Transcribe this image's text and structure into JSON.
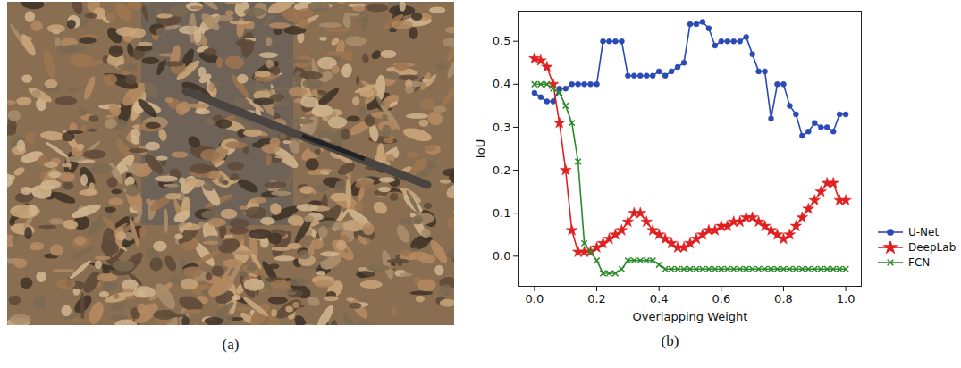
{
  "panel_labels": [
    "(a)",
    "(b)"
  ],
  "chart_data": {
    "type": "line",
    "x_label": "Overlapping Weight",
    "y_label": "IoU",
    "x": [
      0.0,
      0.02,
      0.04,
      0.06,
      0.08,
      0.1,
      0.12,
      0.14,
      0.16,
      0.18,
      0.2,
      0.22,
      0.24,
      0.26,
      0.28,
      0.3,
      0.32,
      0.34,
      0.36,
      0.38,
      0.4,
      0.42,
      0.44,
      0.46,
      0.48,
      0.5,
      0.52,
      0.54,
      0.56,
      0.58,
      0.6,
      0.62,
      0.64,
      0.66,
      0.68,
      0.7,
      0.72,
      0.74,
      0.76,
      0.78,
      0.8,
      0.82,
      0.84,
      0.86,
      0.88,
      0.9,
      0.92,
      0.94,
      0.96,
      0.98,
      1.0
    ],
    "series": [
      {
        "name": "U-Net",
        "color": "#2a4bb5",
        "marker": "circle",
        "values": [
          0.38,
          0.37,
          0.36,
          0.36,
          0.39,
          0.39,
          0.4,
          0.4,
          0.4,
          0.4,
          0.4,
          0.5,
          0.5,
          0.5,
          0.5,
          0.42,
          0.42,
          0.42,
          0.42,
          0.42,
          0.43,
          0.42,
          0.43,
          0.44,
          0.45,
          0.54,
          0.54,
          0.545,
          0.53,
          0.49,
          0.5,
          0.5,
          0.5,
          0.5,
          0.51,
          0.47,
          0.43,
          0.43,
          0.32,
          0.4,
          0.4,
          0.35,
          0.33,
          0.28,
          0.29,
          0.31,
          0.3,
          0.3,
          0.29,
          0.33,
          0.33
        ]
      },
      {
        "name": "DeepLab",
        "color": "#e02020",
        "marker": "star",
        "values": [
          0.46,
          0.455,
          0.44,
          0.4,
          0.31,
          0.2,
          0.06,
          0.01,
          0.01,
          0.01,
          0.02,
          0.03,
          0.04,
          0.05,
          0.06,
          0.08,
          0.1,
          0.1,
          0.08,
          0.06,
          0.05,
          0.04,
          0.03,
          0.02,
          0.02,
          0.03,
          0.04,
          0.05,
          0.06,
          0.06,
          0.07,
          0.07,
          0.08,
          0.08,
          0.09,
          0.09,
          0.08,
          0.07,
          0.06,
          0.05,
          0.04,
          0.05,
          0.07,
          0.09,
          0.11,
          0.13,
          0.15,
          0.17,
          0.17,
          0.13,
          0.13
        ]
      },
      {
        "name": "FCN",
        "color": "#2a8a2a",
        "marker": "x",
        "values": [
          0.4,
          0.4,
          0.4,
          0.39,
          0.38,
          0.35,
          0.31,
          0.22,
          0.03,
          0.01,
          -0.01,
          -0.04,
          -0.04,
          -0.04,
          -0.03,
          -0.01,
          -0.01,
          -0.01,
          -0.01,
          -0.01,
          -0.02,
          -0.03,
          -0.03,
          -0.03,
          -0.03,
          -0.03,
          -0.03,
          -0.03,
          -0.03,
          -0.03,
          -0.03,
          -0.03,
          -0.03,
          -0.03,
          -0.03,
          -0.03,
          -0.03,
          -0.03,
          -0.03,
          -0.03,
          -0.03,
          -0.03,
          -0.03,
          -0.03,
          -0.03,
          -0.03,
          -0.03,
          -0.03,
          -0.03,
          -0.03,
          -0.03
        ]
      }
    ],
    "xlim": [
      -0.05,
      1.05
    ],
    "ylim": [
      -0.07,
      0.57
    ],
    "xticks": [
      {
        "value": 0,
        "label": "0.0"
      },
      {
        "value": 0.2,
        "label": "0.2"
      },
      {
        "value": 0.4,
        "label": "0.4"
      },
      {
        "value": 0.6,
        "label": "0.6"
      },
      {
        "value": 0.8,
        "label": "0.8"
      },
      {
        "value": 1,
        "label": "1.0"
      }
    ],
    "yticks": [
      {
        "value": 0,
        "label": "0.0"
      },
      {
        "value": 0.1,
        "label": "0.1"
      },
      {
        "value": 0.2,
        "label": "0.2"
      },
      {
        "value": 0.3,
        "label": "0.3"
      },
      {
        "value": 0.4,
        "label": "0.4"
      },
      {
        "value": 0.5,
        "label": "0.5"
      }
    ],
    "grid": false,
    "legend": "right"
  }
}
